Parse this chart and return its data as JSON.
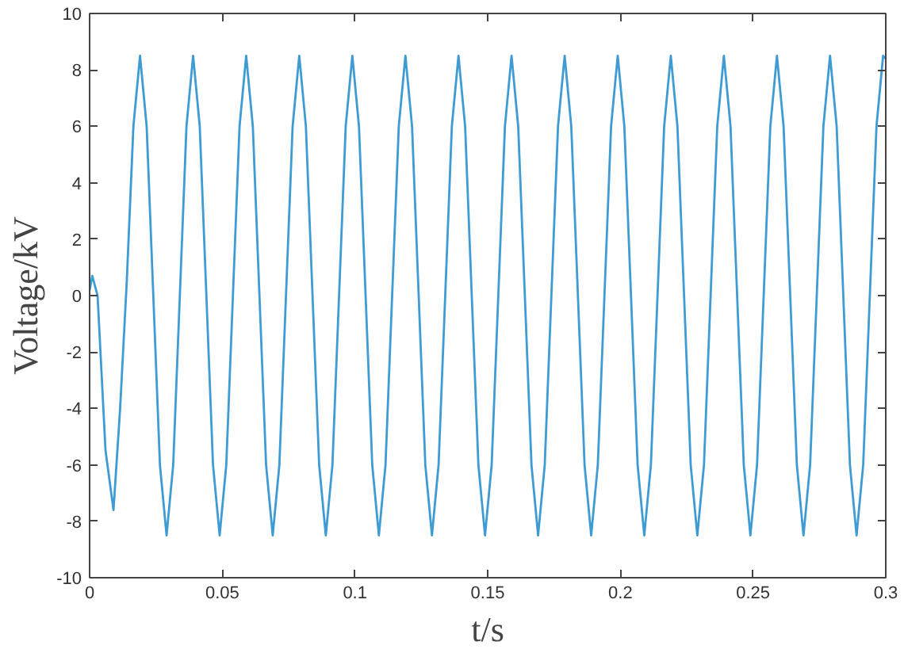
{
  "chart_data": {
    "type": "line",
    "xlabel": "t/s",
    "ylabel": "Voltage/kV",
    "xlim": [
      0,
      0.3
    ],
    "ylim": [
      -10,
      10
    ],
    "xticks": [
      0,
      0.05,
      0.1,
      0.15,
      0.2,
      0.25,
      0.3
    ],
    "yticks": [
      -10,
      -8,
      -6,
      -4,
      -2,
      0,
      2,
      4,
      6,
      8,
      10
    ],
    "grid": false,
    "marker": "none",
    "line_style": "solid",
    "series": [
      {
        "color": "#3f9bd3",
        "x": [
          0,
          0.001,
          0.003,
          0.006,
          0.009,
          0.0115,
          0.014,
          0.0165,
          0.019,
          0.0215,
          0.024,
          0.0265,
          0.029,
          0.0315,
          0.034,
          0.0365,
          0.039,
          0.0415,
          0.044,
          0.0465,
          0.049,
          0.0515,
          0.054,
          0.0565,
          0.059,
          0.0615,
          0.064,
          0.0665,
          0.069,
          0.0715,
          0.074,
          0.0765,
          0.079,
          0.0815,
          0.084,
          0.0865,
          0.089,
          0.0915,
          0.094,
          0.0965,
          0.099,
          0.1015,
          0.104,
          0.1065,
          0.109,
          0.1115,
          0.114,
          0.1165,
          0.119,
          0.1215,
          0.124,
          0.1265,
          0.129,
          0.1315,
          0.134,
          0.1365,
          0.139,
          0.1415,
          0.144,
          0.1465,
          0.149,
          0.1515,
          0.154,
          0.1565,
          0.159,
          0.1615,
          0.164,
          0.1665,
          0.169,
          0.1715,
          0.174,
          0.1765,
          0.179,
          0.1815,
          0.184,
          0.1865,
          0.189,
          0.1915,
          0.194,
          0.1965,
          0.199,
          0.2015,
          0.204,
          0.2065,
          0.209,
          0.2115,
          0.214,
          0.2165,
          0.219,
          0.2215,
          0.224,
          0.2265,
          0.229,
          0.2315,
          0.234,
          0.2365,
          0.239,
          0.2415,
          0.244,
          0.2465,
          0.249,
          0.2515,
          0.254,
          0.2565,
          0.259,
          0.2615,
          0.264,
          0.2665,
          0.269,
          0.2715,
          0.274,
          0.2765,
          0.279,
          0.2815,
          0.284,
          0.2865,
          0.289,
          0.2915,
          0.294,
          0.2965,
          0.299,
          0.3
        ],
        "values": [
          0.2,
          0.7,
          0.0,
          -5.5,
          -7.6,
          -4.0,
          0.5,
          6.0,
          8.5,
          6.0,
          0,
          -6.0,
          -8.5,
          -6.0,
          0,
          6.0,
          8.5,
          6.0,
          0,
          -6.0,
          -8.5,
          -6.0,
          0,
          6.0,
          8.5,
          6.0,
          0,
          -6.0,
          -8.5,
          -6.0,
          0,
          6.0,
          8.5,
          6.0,
          0,
          -6.0,
          -8.5,
          -6.0,
          0,
          6.0,
          8.5,
          6.0,
          0,
          -6.0,
          -8.5,
          -6.0,
          0,
          6.0,
          8.5,
          6.0,
          0,
          -6.0,
          -8.5,
          -6.0,
          0,
          6.0,
          8.5,
          6.0,
          0,
          -6.0,
          -8.5,
          -6.0,
          0,
          6.0,
          8.5,
          6.0,
          0,
          -6.0,
          -8.5,
          -6.0,
          0,
          6.0,
          8.5,
          6.0,
          0,
          -6.0,
          -8.5,
          -6.0,
          0,
          6.0,
          8.5,
          6.0,
          0,
          -6.0,
          -8.5,
          -6.0,
          0,
          6.0,
          8.5,
          6.0,
          0,
          -6.0,
          -8.5,
          -6.0,
          0,
          6.0,
          8.5,
          6.0,
          0,
          -6.0,
          -8.5,
          -6.0,
          0,
          6.0,
          8.5,
          6.0,
          0,
          -6.0,
          -8.5,
          -6.0,
          0,
          6.0,
          8.5,
          6.0,
          0,
          -6.0,
          -8.5,
          -6.0,
          0,
          6.0,
          8.5,
          8.4
        ]
      }
    ]
  }
}
